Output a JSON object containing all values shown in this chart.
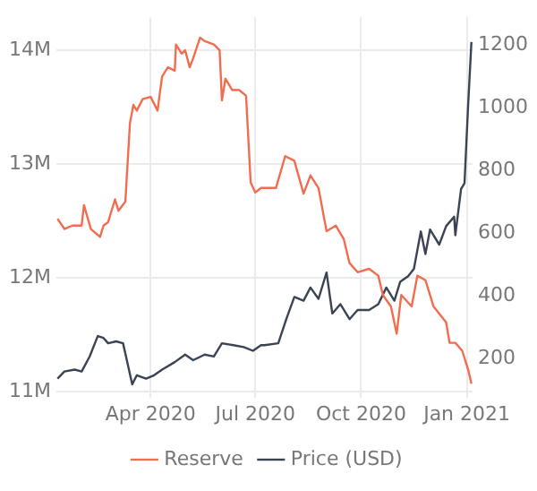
{
  "chart_data": {
    "type": "line",
    "legend": "bottom",
    "grid": true,
    "line_style": "solid",
    "marker": "none",
    "xlim": [
      "2020-01-10",
      "2021-01-06"
    ],
    "xticks": [
      {
        "value": "2020-04-01",
        "label": "Apr 2020"
      },
      {
        "value": "2020-07-01",
        "label": "Jul 2020"
      },
      {
        "value": "2020-10-01",
        "label": "Oct 2020"
      },
      {
        "value": "2021-01-01",
        "label": "Jan 2021"
      }
    ],
    "ylim": [
      10950000,
      14290000
    ],
    "yticks": [
      {
        "value": 11000000,
        "label": "11M"
      },
      {
        "value": 12000000,
        "label": "12M"
      },
      {
        "value": 13000000,
        "label": "13M"
      },
      {
        "value": 14000000,
        "label": "14M"
      }
    ],
    "y2lim": [
      75,
      1289
    ],
    "y2ticks": [
      200,
      400,
      600,
      800,
      1000,
      1200
    ],
    "series": [
      {
        "name": "Reserve",
        "color": "#f26c50",
        "x": [
          "2020-01-11",
          "2020-01-17",
          "2020-01-24",
          "2020-02-01",
          "2020-02-03",
          "2020-02-09",
          "2020-02-17",
          "2020-02-20",
          "2020-02-24",
          "2020-03-01",
          "2020-03-04",
          "2020-03-10",
          "2020-03-11",
          "2020-03-14",
          "2020-03-17",
          "2020-03-20",
          "2020-03-25",
          "2020-04-01",
          "2020-04-07",
          "2020-04-11",
          "2020-04-16",
          "2020-04-22",
          "2020-04-23",
          "2020-04-28",
          "2020-05-01",
          "2020-05-05",
          "2020-05-08",
          "2020-05-14",
          "2020-05-18",
          "2020-05-26",
          "2020-05-31",
          "2020-06-02",
          "2020-06-05",
          "2020-06-11",
          "2020-06-17",
          "2020-06-23",
          "2020-06-27",
          "2020-07-01",
          "2020-07-06",
          "2020-07-09",
          "2020-07-19",
          "2020-07-27",
          "2020-08-04",
          "2020-08-12",
          "2020-08-18",
          "2020-08-25",
          "2020-09-01",
          "2020-09-09",
          "2020-09-16",
          "2020-09-21",
          "2020-09-28",
          "2020-10-08",
          "2020-10-16",
          "2020-10-20",
          "2020-10-27",
          "2020-11-01",
          "2020-11-05",
          "2020-11-14",
          "2020-11-19",
          "2020-11-26",
          "2020-12-03",
          "2020-12-14",
          "2020-12-17",
          "2020-12-22",
          "2020-12-28",
          "2021-01-02",
          "2021-01-05"
        ],
        "values": [
          12520000,
          12430000,
          12460000,
          12460000,
          12640000,
          12430000,
          12360000,
          12460000,
          12490000,
          12690000,
          12590000,
          12670000,
          12670000,
          13360000,
          13520000,
          13470000,
          13570000,
          13590000,
          13470000,
          13770000,
          13850000,
          13820000,
          14050000,
          13970000,
          14000000,
          13850000,
          13930000,
          14110000,
          14080000,
          14050000,
          14000000,
          13560000,
          13750000,
          13650000,
          13650000,
          13600000,
          12840000,
          12750000,
          12790000,
          12790000,
          12790000,
          13070000,
          13030000,
          12740000,
          12900000,
          12790000,
          12410000,
          12460000,
          12340000,
          12130000,
          12050000,
          12080000,
          12020000,
          11850000,
          11750000,
          11510000,
          11850000,
          11750000,
          12020000,
          11980000,
          11750000,
          11610000,
          11430000,
          11430000,
          11360000,
          11200000,
          11070000
        ]
      },
      {
        "name": "Price (USD)",
        "color": "#3a4452",
        "axis": "y2",
        "x": [
          "2020-01-11",
          "2020-01-17",
          "2020-01-26",
          "2020-02-01",
          "2020-02-08",
          "2020-02-15",
          "2020-02-20",
          "2020-02-24",
          "2020-03-02",
          "2020-03-08",
          "2020-03-16",
          "2020-03-20",
          "2020-03-28",
          "2020-04-04",
          "2020-04-11",
          "2020-04-22",
          "2020-05-01",
          "2020-05-08",
          "2020-05-18",
          "2020-05-26",
          "2020-06-02",
          "2020-06-12",
          "2020-06-21",
          "2020-06-29",
          "2020-07-06",
          "2020-07-09",
          "2020-07-21",
          "2020-07-28",
          "2020-08-04",
          "2020-08-12",
          "2020-08-18",
          "2020-08-25",
          "2020-09-01",
          "2020-09-06",
          "2020-09-13",
          "2020-09-21",
          "2020-09-28",
          "2020-10-08",
          "2020-10-16",
          "2020-10-23",
          "2020-10-30",
          "2020-11-04",
          "2020-11-11",
          "2020-11-16",
          "2020-11-22",
          "2020-11-26",
          "2020-11-30",
          "2020-12-08",
          "2020-12-14",
          "2020-12-21",
          "2020-12-22",
          "2020-12-27",
          "2020-12-30",
          "2021-01-02",
          "2021-01-05"
        ],
        "values": [
          135,
          158,
          164,
          158,
          206,
          271,
          265,
          248,
          254,
          248,
          117,
          146,
          135,
          146,
          164,
          188,
          212,
          194,
          212,
          206,
          248,
          242,
          236,
          224,
          242,
          242,
          248,
          325,
          396,
          384,
          426,
          390,
          474,
          343,
          373,
          325,
          354,
          354,
          373,
          426,
          384,
          444,
          462,
          486,
          605,
          533,
          611,
          563,
          622,
          652,
          593,
          741,
          759,
          998,
          1210
        ]
      }
    ]
  }
}
